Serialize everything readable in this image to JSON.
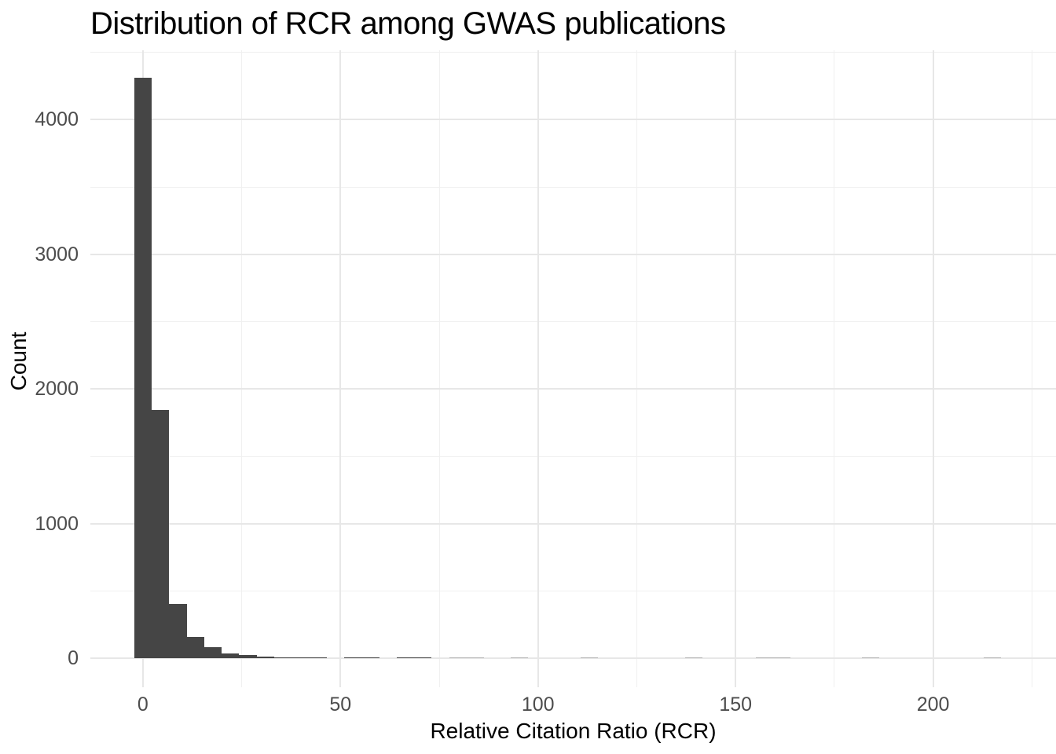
{
  "chart_data": {
    "type": "bar",
    "subtype": "histogram",
    "title": "Distribution of RCR among GWAS publications",
    "xlabel": "Relative Citation Ratio (RCR)",
    "ylabel": "Count",
    "x_ticks": [
      0,
      50,
      100,
      150,
      200
    ],
    "x_minor_ticks": [
      25,
      75,
      125,
      175,
      225
    ],
    "y_ticks": [
      0,
      1000,
      2000,
      3000,
      4000
    ],
    "y_minor_ticks": [
      500,
      1500,
      2500,
      3500,
      4500
    ],
    "xlim": [
      -13.3,
      231.1
    ],
    "ylim": [
      -215,
      4516
    ],
    "binwidth": 4.43,
    "grid": "on",
    "legend": "none",
    "bins": [
      {
        "x": 0,
        "count": 4313
      },
      {
        "x": 4.43,
        "count": 1845
      },
      {
        "x": 8.86,
        "count": 402
      },
      {
        "x": 13.29,
        "count": 161
      },
      {
        "x": 17.72,
        "count": 82
      },
      {
        "x": 22.15,
        "count": 38
      },
      {
        "x": 26.58,
        "count": 23
      },
      {
        "x": 31.01,
        "count": 13
      },
      {
        "x": 35.44,
        "count": 8
      },
      {
        "x": 39.87,
        "count": 6
      },
      {
        "x": 44.3,
        "count": 3
      },
      {
        "x": 53.16,
        "count": 2
      },
      {
        "x": 57.59,
        "count": 2
      },
      {
        "x": 66.45,
        "count": 2
      },
      {
        "x": 70.88,
        "count": 2
      },
      {
        "x": 79.74,
        "count": 1
      },
      {
        "x": 84.17,
        "count": 1
      },
      {
        "x": 95.25,
        "count": 1
      },
      {
        "x": 113.0,
        "count": 1
      },
      {
        "x": 139.4,
        "count": 1
      },
      {
        "x": 157.3,
        "count": 1
      },
      {
        "x": 161.7,
        "count": 1
      },
      {
        "x": 184.2,
        "count": 1
      },
      {
        "x": 215.0,
        "count": 1
      }
    ]
  },
  "colors": {
    "bar": "#454545",
    "bar_faint": "#b3b3b3",
    "grid_major": "#e7e7e7",
    "grid_minor": "#f0f0f0",
    "tick_label": "#4d4d4d",
    "text": "#000000",
    "background": "#ffffff"
  }
}
